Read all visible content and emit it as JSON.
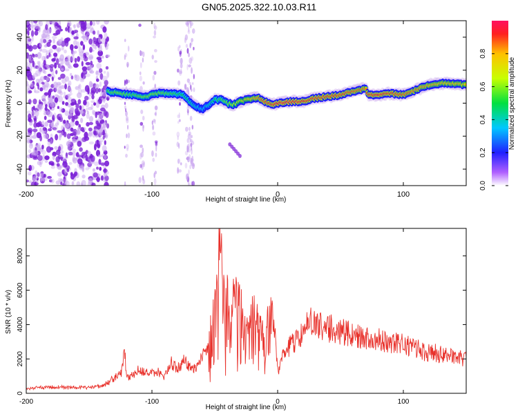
{
  "title": "GN05.2025.322.10.03.R11",
  "colors": {
    "trace": "#e8302a",
    "speckle": "#7a1fd6",
    "speckle_light": "#c9a6ef"
  },
  "chart_data": [
    {
      "type": "heatmap",
      "title": "GN05.2025.322.10.03.R11",
      "xlabel": "Height of straight line (km)",
      "ylabel": "Frequency (Hz)",
      "xlim": [
        -200,
        150
      ],
      "ylim": [
        -50,
        50
      ],
      "xticks": [
        -200,
        -100,
        0,
        100
      ],
      "yticks": [
        -40,
        -20,
        0,
        20,
        40
      ],
      "colorbar": {
        "label": "Normalized spectral amplitude",
        "range": [
          0,
          1
        ],
        "ticks": [
          0.0,
          0.2,
          0.4,
          0.6,
          0.8
        ],
        "tick_labels": [
          "0.0",
          "0.2",
          "0.4",
          "0.6",
          "0.8"
        ]
      },
      "ridge": {
        "x": [
          -135,
          -125,
          -115,
          -105,
          -95,
          -85,
          -75,
          -70,
          -65,
          -60,
          -55,
          -50,
          -45,
          -40,
          -35,
          -30,
          -25,
          -20,
          -15,
          -10,
          -5,
          0,
          10,
          20,
          30,
          40,
          50,
          60,
          70,
          72,
          80,
          90,
          100,
          110,
          120,
          130,
          140,
          150
        ],
        "frequency": [
          7,
          6,
          5,
          4,
          6,
          6,
          5,
          1,
          -2,
          -4,
          -1,
          2,
          2,
          0,
          -1,
          1,
          2,
          3,
          3,
          1,
          -1,
          0,
          1,
          1,
          3,
          4,
          5,
          7,
          9,
          5,
          5,
          6,
          5,
          8,
          11,
          12,
          12,
          11
        ],
        "amplitude": [
          0.55,
          0.6,
          0.55,
          0.6,
          0.6,
          0.55,
          0.5,
          0.45,
          0.4,
          0.35,
          0.4,
          0.5,
          0.55,
          0.6,
          0.65,
          0.7,
          0.75,
          0.8,
          0.85,
          0.9,
          0.9,
          0.95,
          0.95,
          0.92,
          0.9,
          0.9,
          0.9,
          0.88,
          0.85,
          0.9,
          0.92,
          0.9,
          0.88,
          0.85,
          0.82,
          0.8,
          0.8,
          0.78
        ]
      },
      "noise_region": {
        "x_range": [
          -200,
          -135
        ],
        "amplitude": 0.3
      },
      "secondary_feature": {
        "x": [
          -38,
          -30
        ],
        "frequency": [
          -25,
          -32
        ]
      }
    },
    {
      "type": "line",
      "xlabel": "Height of straight line (km)",
      "ylabel": "SNR (10 * v/v)",
      "xlim": [
        -200,
        150
      ],
      "ylim": [
        0,
        9600
      ],
      "xticks": [
        -200,
        -100,
        0,
        100
      ],
      "yticks": [
        0,
        2000,
        4000,
        6000,
        8000
      ],
      "series": [
        {
          "name": "SNR",
          "x": [
            -200,
            -180,
            -160,
            -140,
            -130,
            -124,
            -122,
            -120,
            -110,
            -100,
            -95,
            -90,
            -85,
            -80,
            -75,
            -70,
            -65,
            -60,
            -55,
            -50,
            -48,
            -46,
            -45,
            -44,
            -42,
            -40,
            -38,
            -35,
            -30,
            -25,
            -20,
            -15,
            -10,
            -5,
            -2,
            0,
            5,
            10,
            20,
            25,
            30,
            40,
            50,
            60,
            70,
            80,
            90,
            100,
            110,
            120,
            130,
            140,
            150
          ],
          "y": [
            300,
            350,
            320,
            400,
            900,
            1200,
            2700,
            900,
            1400,
            1100,
            1300,
            1000,
            1800,
            1400,
            1900,
            1600,
            1400,
            2000,
            3000,
            5200,
            6500,
            9300,
            8200,
            6800,
            5500,
            6500,
            4800,
            5600,
            5400,
            3500,
            5200,
            4200,
            3400,
            5400,
            3200,
            1200,
            2300,
            2800,
            3500,
            4300,
            4000,
            3800,
            3600,
            3400,
            3200,
            3100,
            2900,
            2800,
            2600,
            2400,
            2300,
            2100,
            2000
          ]
        }
      ]
    }
  ]
}
